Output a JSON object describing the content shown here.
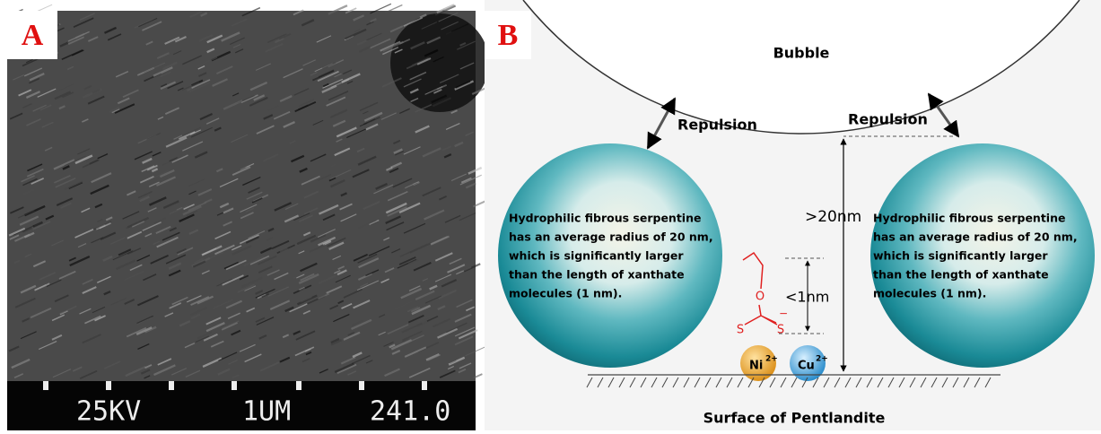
{
  "panel_a": {
    "label": "A",
    "scale_bar": [
      "25KV",
      "1UM",
      "241.0"
    ]
  },
  "panel_b": {
    "label": "B",
    "bubble": "Bubble",
    "repulsion": [
      "Repulsion",
      "Repulsion"
    ],
    "sphere_text": [
      "Hydrophilic fibrous serpentine",
      "has an average radius of 20 nm,",
      "which is significantly larger",
      "than the length of xanthate",
      "molecules (1 nm)."
    ],
    "distance_large": ">20nm",
    "distance_small": "<1nm",
    "molecule_atoms": [
      "O",
      "S",
      "S"
    ],
    "molecule_charge": "−",
    "ions": [
      {
        "symbol": "Ni",
        "charge": "2+"
      },
      {
        "symbol": "Cu",
        "charge": "2+"
      }
    ],
    "surface": "Surface of Pentlandite"
  }
}
